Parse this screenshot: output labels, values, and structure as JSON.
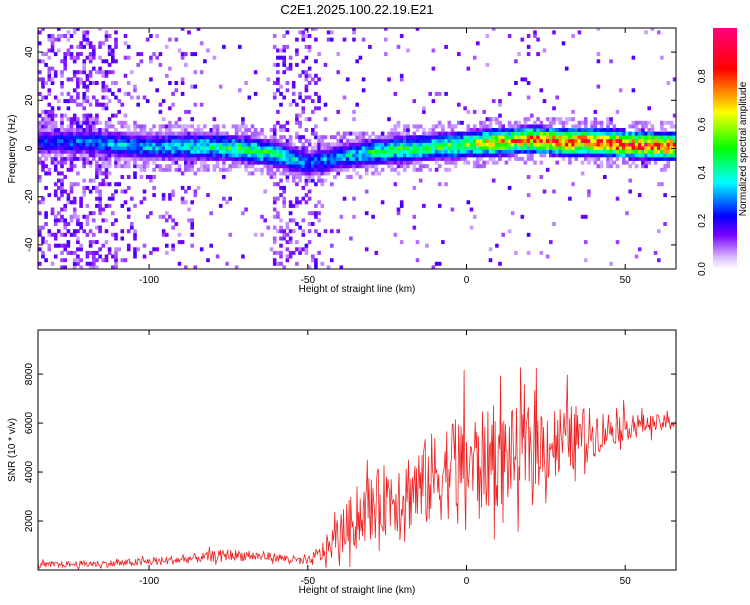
{
  "figure": {
    "title": "C2E1.2025.100.22.19.E21"
  },
  "chart_data": [
    {
      "type": "heatmap",
      "xlabel": "Height of straight line (km)",
      "ylabel": "Frequency (Hz)",
      "xlim": [
        -135,
        66
      ],
      "ylim": [
        -50,
        50
      ],
      "xticks": [
        -100,
        -50,
        0,
        50
      ],
      "yticks": [
        -40,
        -20,
        0,
        20,
        40
      ],
      "colorbar": {
        "label": "Normalized spectral amplitude",
        "range": [
          0,
          1
        ],
        "ticks": [
          0.0,
          0.2,
          0.4,
          0.6,
          0.8
        ],
        "colormap": [
          "#c8a0ff",
          "#7800ff",
          "#0000ff",
          "#00ffff",
          "#00ff00",
          "#ffff00",
          "#ff0000",
          "#ff0080"
        ]
      },
      "ridge": {
        "description_points": [
          {
            "x": -135,
            "freq": 2,
            "amp": 0.25
          },
          {
            "x": -120,
            "freq": 2,
            "amp": 0.3
          },
          {
            "x": -100,
            "freq": 0,
            "amp": 0.35
          },
          {
            "x": -80,
            "freq": 0,
            "amp": 0.45
          },
          {
            "x": -70,
            "freq": -1,
            "amp": 0.5
          },
          {
            "x": -60,
            "freq": -3,
            "amp": 0.45
          },
          {
            "x": -50,
            "freq": -7,
            "amp": 0.3
          },
          {
            "x": -40,
            "freq": -4,
            "amp": 0.35
          },
          {
            "x": -30,
            "freq": -2,
            "amp": 0.45
          },
          {
            "x": -20,
            "freq": -1,
            "amp": 0.5
          },
          {
            "x": -10,
            "freq": 0,
            "amp": 0.5
          },
          {
            "x": 0,
            "freq": 1,
            "amp": 0.6
          },
          {
            "x": 10,
            "freq": 2,
            "amp": 0.75
          },
          {
            "x": 20,
            "freq": 3,
            "amp": 0.8
          },
          {
            "x": 30,
            "freq": 2,
            "amp": 0.85
          },
          {
            "x": 40,
            "freq": 2,
            "amp": 0.9
          },
          {
            "x": 50,
            "freq": 1,
            "amp": 0.9
          },
          {
            "x": 66,
            "freq": 0,
            "amp": 0.9
          }
        ]
      }
    },
    {
      "type": "line",
      "xlabel": "Height of straight line (km)",
      "ylabel": "SNR (10 * v/v)",
      "xlim": [
        -135,
        66
      ],
      "ylim": [
        0,
        9800
      ],
      "xticks": [
        -100,
        -50,
        0,
        50
      ],
      "yticks": [
        2000,
        4000,
        6000,
        8000
      ],
      "color": "#ee2222",
      "envelope": [
        {
          "x": -135,
          "base": 200,
          "amp": 200
        },
        {
          "x": -110,
          "base": 250,
          "amp": 250
        },
        {
          "x": -90,
          "base": 400,
          "amp": 300
        },
        {
          "x": -75,
          "base": 600,
          "amp": 400
        },
        {
          "x": -60,
          "base": 500,
          "amp": 300
        },
        {
          "x": -50,
          "base": 300,
          "amp": 300
        },
        {
          "x": -45,
          "base": 700,
          "amp": 800
        },
        {
          "x": -35,
          "base": 2000,
          "amp": 2000
        },
        {
          "x": -25,
          "base": 2800,
          "amp": 2500
        },
        {
          "x": -15,
          "base": 3200,
          "amp": 3000
        },
        {
          "x": -5,
          "base": 4000,
          "amp": 3500
        },
        {
          "x": 5,
          "base": 4200,
          "amp": 3500
        },
        {
          "x": 15,
          "base": 4500,
          "amp": 3200
        },
        {
          "x": 25,
          "base": 5000,
          "amp": 2800
        },
        {
          "x": 35,
          "base": 5300,
          "amp": 2200
        },
        {
          "x": 45,
          "base": 5700,
          "amp": 1200
        },
        {
          "x": 55,
          "base": 5900,
          "amp": 700
        },
        {
          "x": 66,
          "base": 6000,
          "amp": 500
        }
      ]
    }
  ]
}
